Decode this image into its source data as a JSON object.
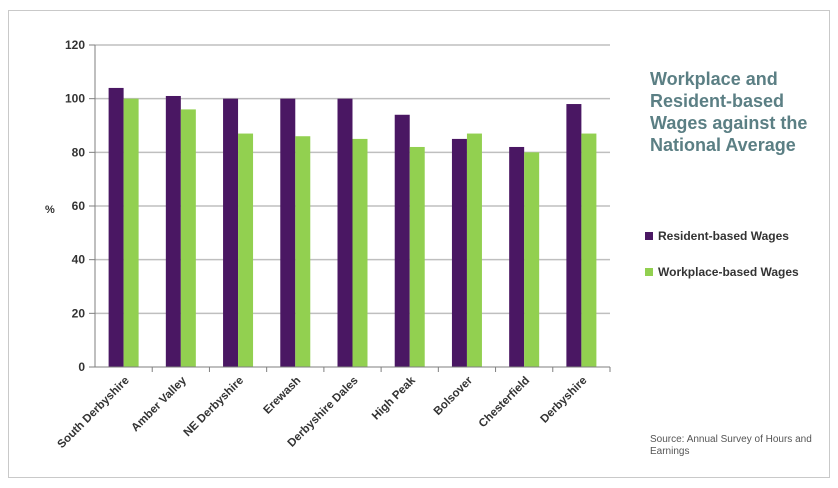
{
  "title": "Workplace and Resident-based Wages against the National Average",
  "source": "Source: Annual Survey of Hours and Earnings",
  "colors": {
    "resident": "#4a1763",
    "workplace": "#92d050",
    "grid": "#bfbfbf",
    "axis": "#7f7f7f",
    "title": "#5b7f84"
  },
  "chart_data": {
    "type": "bar",
    "title": "Workplace and Resident-based Wages against the National Average",
    "xlabel": "",
    "ylabel": "%",
    "ylim": [
      0,
      120
    ],
    "yticks": [
      0,
      20,
      40,
      60,
      80,
      100,
      120
    ],
    "grid": true,
    "legend_position": "right",
    "categories": [
      "South Derbyshire",
      "Amber Valley",
      "NE Derbyshire",
      "Erewash",
      "Derbyshire Dales",
      "High Peak",
      "Bolsover",
      "Chesterfield",
      "Derbyshire"
    ],
    "series": [
      {
        "name": "Resident-based Wages",
        "values": [
          104,
          101,
          100,
          100,
          100,
          94,
          85,
          82,
          98
        ]
      },
      {
        "name": "Workplace-based Wages",
        "values": [
          100,
          96,
          87,
          86,
          85,
          82,
          87,
          80,
          87
        ]
      }
    ]
  }
}
